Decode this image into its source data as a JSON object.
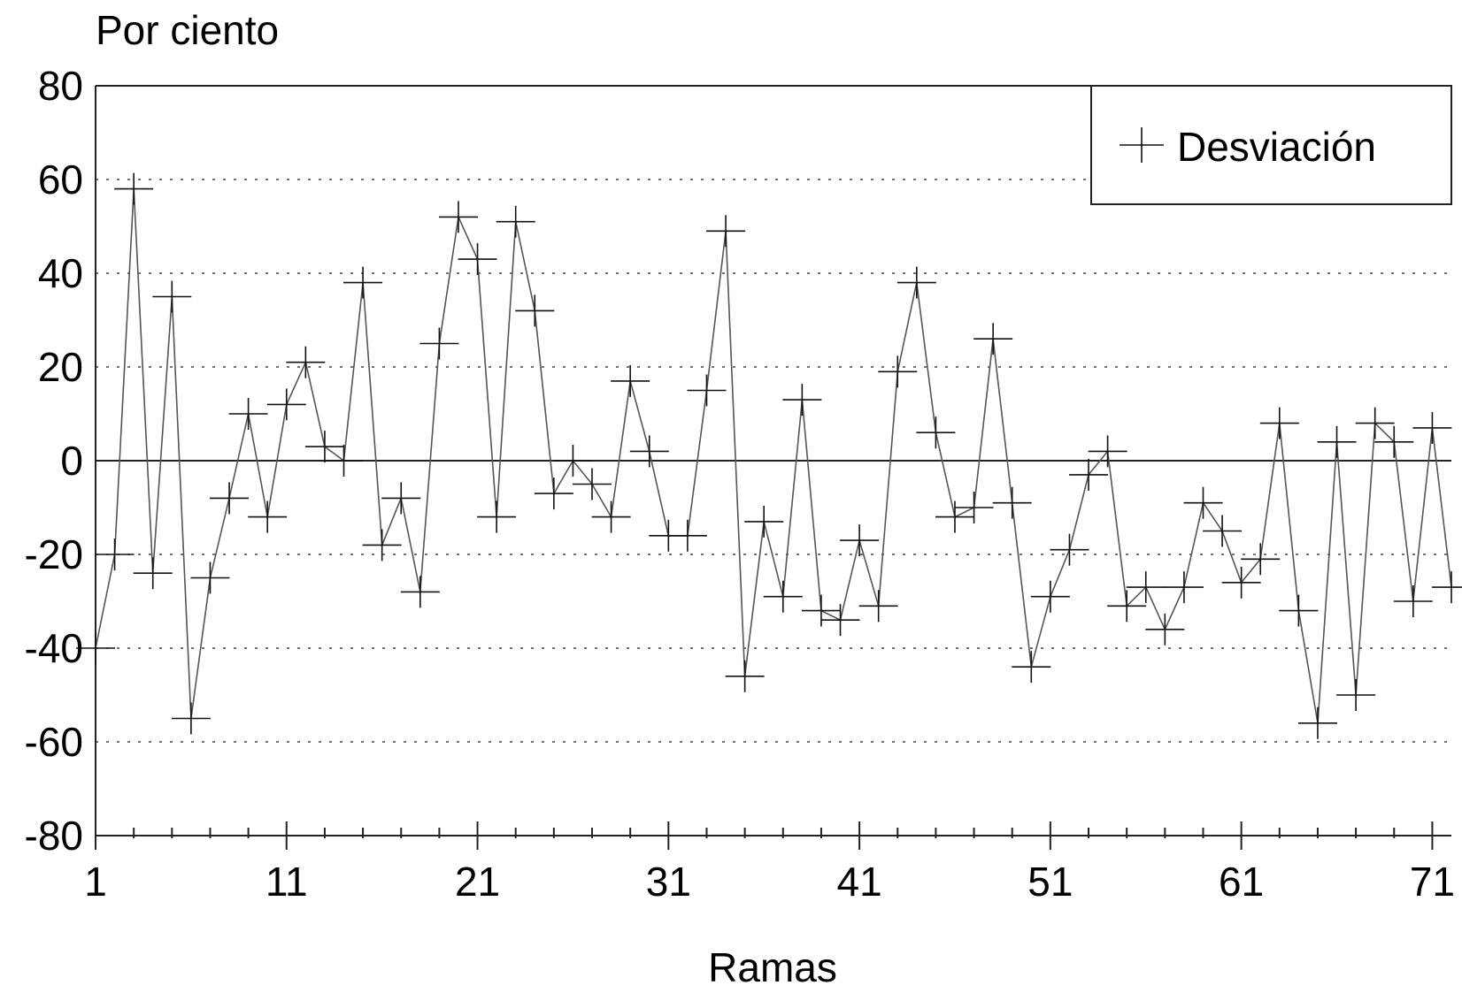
{
  "chart_data": {
    "type": "line",
    "ylabel": "Por ciento",
    "xlabel": "Ramas",
    "ylim": [
      -80,
      80
    ],
    "yticks": [
      80,
      60,
      40,
      20,
      0,
      -20,
      -40,
      -60,
      -80
    ],
    "xlim": [
      1,
      72
    ],
    "xticks_labeled": [
      1,
      11,
      21,
      31,
      41,
      51,
      61,
      71
    ],
    "grid": "horizontal dotted",
    "legend_position": "top-right",
    "series": [
      {
        "name": "Desviación",
        "marker": "plus",
        "x": [
          1,
          2,
          3,
          4,
          5,
          6,
          7,
          8,
          9,
          10,
          11,
          12,
          13,
          14,
          15,
          16,
          17,
          18,
          19,
          20,
          21,
          22,
          23,
          24,
          25,
          26,
          27,
          28,
          29,
          30,
          31,
          32,
          33,
          34,
          35,
          36,
          37,
          38,
          39,
          40,
          41,
          42,
          43,
          44,
          45,
          46,
          47,
          48,
          49,
          50,
          51,
          52,
          53,
          54,
          55,
          56,
          57,
          58,
          59,
          60,
          61,
          62,
          63,
          64,
          65,
          66,
          67,
          68,
          69,
          70,
          71,
          72
        ],
        "values": [
          -40,
          -20,
          58,
          -24,
          35,
          -55,
          -25,
          -8,
          10,
          -12,
          12,
          21,
          3,
          0,
          38,
          -18,
          -8,
          -28,
          25,
          52,
          43,
          -12,
          51,
          32,
          -7,
          0,
          -5,
          -12,
          17,
          2,
          -16,
          -16,
          15,
          49,
          -46,
          -13,
          -29,
          13,
          -32,
          -34,
          -17,
          -31,
          19,
          38,
          6,
          -12,
          -10,
          26,
          -9,
          -44,
          -29,
          -19,
          -3,
          2,
          -31,
          -27,
          -36,
          -27,
          -9,
          -15,
          -26,
          -21,
          8,
          -32,
          -56,
          4,
          -50,
          8,
          4,
          -30,
          7,
          -27
        ]
      }
    ]
  }
}
